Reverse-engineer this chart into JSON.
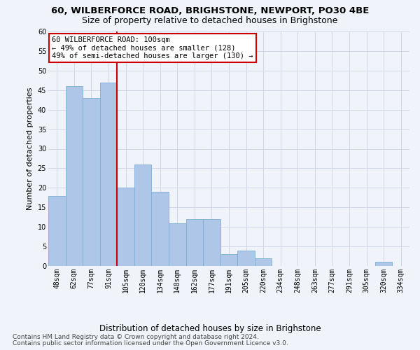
{
  "title1": "60, WILBERFORCE ROAD, BRIGHSTONE, NEWPORT, PO30 4BE",
  "title2": "Size of property relative to detached houses in Brighstone",
  "xlabel": "Distribution of detached houses by size in Brighstone",
  "ylabel": "Number of detached properties",
  "categories": [
    "48sqm",
    "62sqm",
    "77sqm",
    "91sqm",
    "105sqm",
    "120sqm",
    "134sqm",
    "148sqm",
    "162sqm",
    "177sqm",
    "191sqm",
    "205sqm",
    "220sqm",
    "234sqm",
    "248sqm",
    "263sqm",
    "277sqm",
    "291sqm",
    "305sqm",
    "320sqm",
    "334sqm"
  ],
  "values": [
    18,
    46,
    43,
    47,
    20,
    26,
    19,
    11,
    12,
    12,
    3,
    4,
    2,
    0,
    0,
    0,
    0,
    0,
    0,
    1,
    0
  ],
  "bar_color": "#aec6e8",
  "bar_edgecolor": "#7bafd4",
  "bar_linewidth": 0.6,
  "ylim": [
    0,
    60
  ],
  "yticks": [
    0,
    5,
    10,
    15,
    20,
    25,
    30,
    35,
    40,
    45,
    50,
    55,
    60
  ],
  "red_line_index": 3,
  "red_line_color": "#cc0000",
  "annotation_text": "60 WILBERFORCE ROAD: 100sqm\n← 49% of detached houses are smaller (128)\n49% of semi-detached houses are larger (130) →",
  "annotation_box_color": "#ffffff",
  "annotation_box_edgecolor": "#cc0000",
  "footnote1": "Contains HM Land Registry data © Crown copyright and database right 2024.",
  "footnote2": "Contains public sector information licensed under the Open Government Licence v3.0.",
  "bg_color": "#f0f4fa",
  "plot_bg_color": "#f0f4fa",
  "grid_color": "#d0d8e8",
  "title1_fontsize": 9.5,
  "title2_fontsize": 9,
  "ylabel_fontsize": 8,
  "xlabel_fontsize": 8.5,
  "tick_fontsize": 7,
  "annotation_fontsize": 7.5,
  "footnote_fontsize": 6.5
}
